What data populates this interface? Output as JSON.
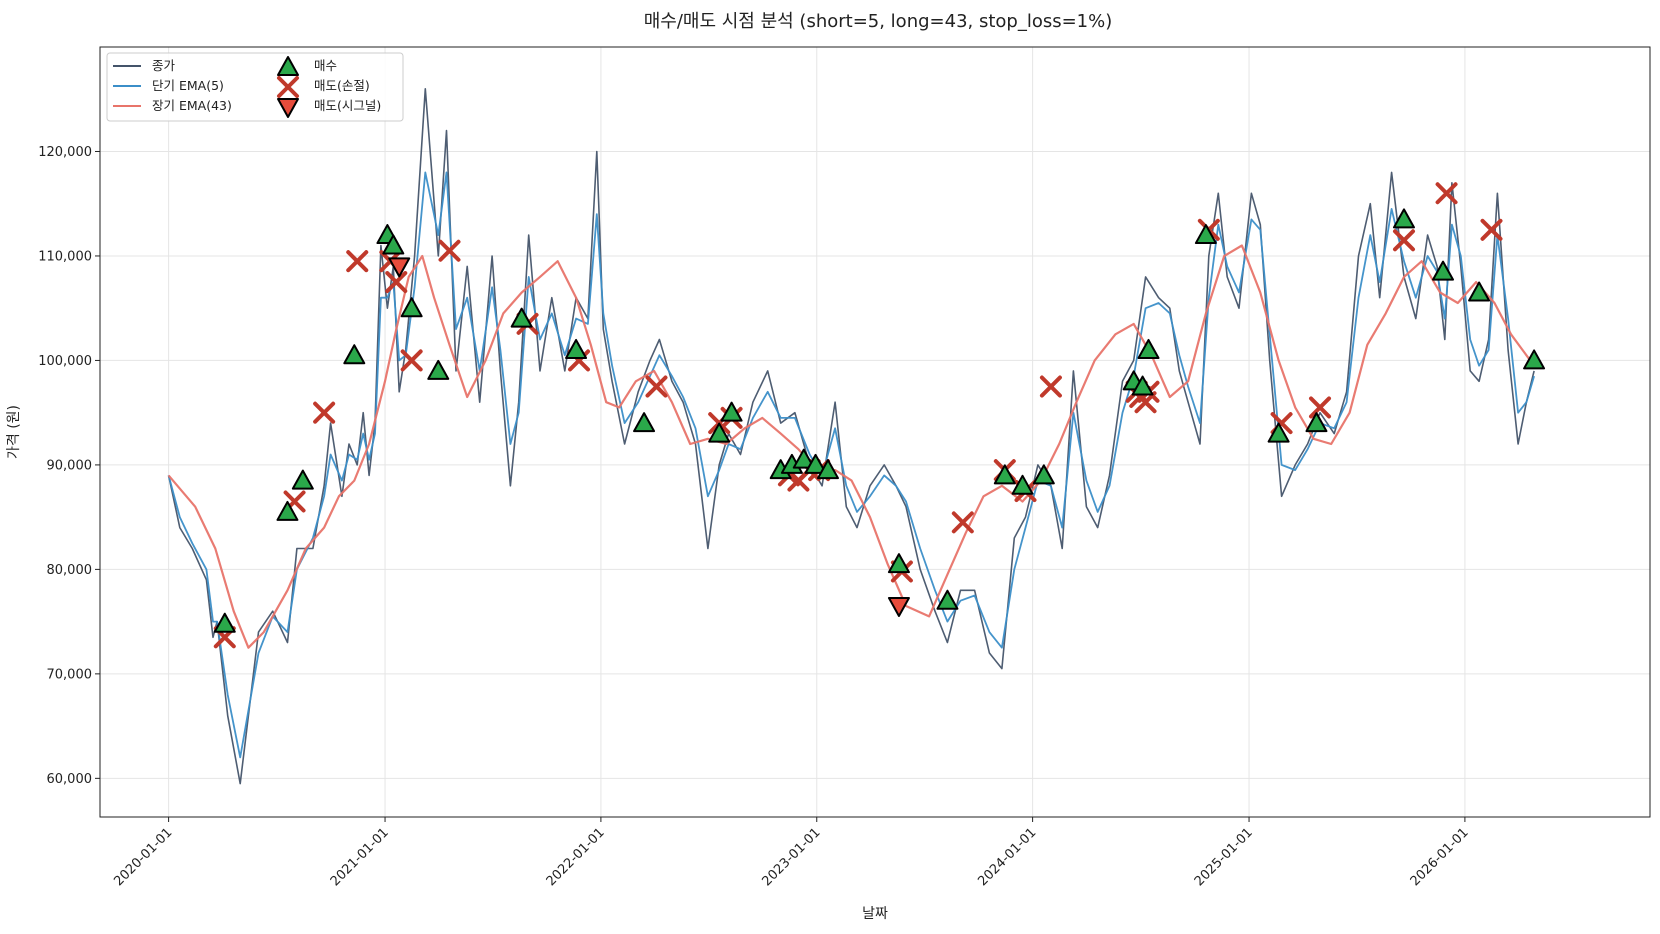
{
  "chart_data": {
    "type": "line",
    "title": "매수/매도 시점 분석 (short=5, long=43, stop_loss=1%)",
    "xlabel": "날짜",
    "ylabel": "가격 (원)",
    "x_ticks": [
      "2020-01-01",
      "2021-01-01",
      "2022-01-01",
      "2023-01-01",
      "2024-01-01",
      "2025-01-01",
      "2026-01-01"
    ],
    "y_ticks": [
      "60,000",
      "70,000",
      "80,000",
      "90,000",
      "100,000",
      "110,000",
      "120,000"
    ],
    "y_tick_values": [
      60000,
      70000,
      80000,
      90000,
      100000,
      110000,
      120000
    ],
    "ylim": [
      56300,
      130000
    ],
    "xlim": [
      "2019-09-07",
      "2026-11-10"
    ],
    "grid": true,
    "legend_position": "top-left",
    "series": [
      {
        "name": "종가",
        "color": "#44546a",
        "x": [
          "2020-01-01",
          "2020-01-20",
          "2020-02-10",
          "2020-03-05",
          "2020-03-16",
          "2020-03-23",
          "2020-04-10",
          "2020-05-01",
          "2020-06-01",
          "2020-06-25",
          "2020-07-20",
          "2020-08-05",
          "2020-09-01",
          "2020-09-20",
          "2020-10-01",
          "2020-10-20",
          "2020-11-01",
          "2020-11-15",
          "2020-11-25",
          "2020-12-05",
          "2020-12-15",
          "2020-12-25",
          "2021-01-05",
          "2021-01-15",
          "2021-01-25",
          "2021-02-05",
          "2021-02-20",
          "2021-03-10",
          "2021-04-01",
          "2021-04-15",
          "2021-05-01",
          "2021-05-20",
          "2021-06-10",
          "2021-07-01",
          "2021-07-15",
          "2021-08-01",
          "2021-08-15",
          "2021-09-01",
          "2021-09-20",
          "2021-10-10",
          "2021-11-01",
          "2021-11-20",
          "2021-12-10",
          "2021-12-25",
          "2022-01-05",
          "2022-01-20",
          "2022-02-10",
          "2022-03-05",
          "2022-03-25",
          "2022-04-10",
          "2022-05-01",
          "2022-05-20",
          "2022-06-10",
          "2022-07-01",
          "2022-07-20",
          "2022-08-05",
          "2022-08-25",
          "2022-09-15",
          "2022-10-10",
          "2022-11-01",
          "2022-11-25",
          "2022-12-20",
          "2023-01-10",
          "2023-02-01",
          "2023-02-20",
          "2023-03-10",
          "2023-04-01",
          "2023-04-25",
          "2023-05-15",
          "2023-06-01",
          "2023-06-25",
          "2023-07-20",
          "2023-08-10",
          "2023-09-01",
          "2023-09-25",
          "2023-10-20",
          "2023-11-10",
          "2023-12-01",
          "2023-12-20",
          "2024-01-10",
          "2024-02-01",
          "2024-02-20",
          "2024-03-10",
          "2024-04-01",
          "2024-04-20",
          "2024-05-10",
          "2024-06-01",
          "2024-06-20",
          "2024-07-10",
          "2024-08-01",
          "2024-08-20",
          "2024-09-05",
          "2024-09-20",
          "2024-10-10",
          "2024-10-25",
          "2024-11-10",
          "2024-11-25",
          "2024-12-15",
          "2025-01-05",
          "2025-01-20",
          "2025-02-05",
          "2025-02-25",
          "2025-03-20",
          "2025-04-10",
          "2025-05-01",
          "2025-05-25",
          "2025-06-15",
          "2025-07-05",
          "2025-07-25",
          "2025-08-10",
          "2025-08-30",
          "2025-09-20",
          "2025-10-10",
          "2025-10-30",
          "2025-11-15",
          "2025-11-28",
          "2025-12-10",
          "2025-12-25",
          "2026-01-10",
          "2026-01-25",
          "2026-02-10",
          "2026-02-25",
          "2026-03-15",
          "2026-04-01",
          "2026-04-15",
          "2026-04-28"
        ],
        "y": [
          89000,
          84000,
          82000,
          79000,
          73500,
          75000,
          66000,
          59500,
          74000,
          76000,
          73000,
          82000,
          82000,
          88000,
          94000,
          87000,
          92000,
          90000,
          95000,
          89000,
          94000,
          111000,
          105000,
          109000,
          97000,
          101000,
          110000,
          126000,
          110000,
          122000,
          99000,
          109000,
          96000,
          110000,
          99000,
          88000,
          96000,
          112000,
          99000,
          106000,
          99000,
          106000,
          104000,
          120000,
          103000,
          98000,
          92000,
          97000,
          100000,
          102000,
          98000,
          96000,
          92000,
          82000,
          90000,
          93000,
          91000,
          96000,
          99000,
          94000,
          95000,
          90000,
          88000,
          96000,
          86000,
          84000,
          88000,
          90000,
          88000,
          86000,
          80000,
          76000,
          73000,
          78000,
          78000,
          72000,
          70500,
          83000,
          85000,
          90000,
          88000,
          82000,
          99000,
          86000,
          84000,
          89000,
          98000,
          100000,
          108000,
          106000,
          105000,
          99000,
          96000,
          92000,
          110000,
          116000,
          108000,
          105000,
          116000,
          113000,
          100000,
          87000,
          90000,
          92000,
          95000,
          93000,
          97000,
          110000,
          115000,
          106000,
          118000,
          108000,
          104000,
          112000,
          109000,
          102000,
          117000,
          109000,
          99000,
          98000,
          102000,
          116000,
          101000,
          92000,
          96000,
          99000
        ]
      },
      {
        "name": "단기 EMA(5)",
        "color": "#3b8ec8",
        "x": [
          "2020-01-01",
          "2020-01-20",
          "2020-02-10",
          "2020-03-05",
          "2020-03-16",
          "2020-03-23",
          "2020-04-10",
          "2020-05-01",
          "2020-06-01",
          "2020-06-25",
          "2020-07-20",
          "2020-08-05",
          "2020-09-01",
          "2020-09-20",
          "2020-10-01",
          "2020-10-20",
          "2020-11-01",
          "2020-11-15",
          "2020-11-25",
          "2020-12-05",
          "2020-12-15",
          "2020-12-25",
          "2021-01-05",
          "2021-01-15",
          "2021-01-25",
          "2021-02-05",
          "2021-02-20",
          "2021-03-10",
          "2021-04-01",
          "2021-04-15",
          "2021-05-01",
          "2021-05-20",
          "2021-06-10",
          "2021-07-01",
          "2021-07-15",
          "2021-08-01",
          "2021-08-15",
          "2021-09-01",
          "2021-09-20",
          "2021-10-10",
          "2021-11-01",
          "2021-11-20",
          "2021-12-10",
          "2021-12-25",
          "2022-01-05",
          "2022-01-20",
          "2022-02-10",
          "2022-03-05",
          "2022-03-25",
          "2022-04-10",
          "2022-05-01",
          "2022-05-20",
          "2022-06-10",
          "2022-07-01",
          "2022-07-20",
          "2022-08-05",
          "2022-08-25",
          "2022-09-15",
          "2022-10-10",
          "2022-11-01",
          "2022-11-25",
          "2022-12-20",
          "2023-01-10",
          "2023-02-01",
          "2023-02-20",
          "2023-03-10",
          "2023-04-01",
          "2023-04-25",
          "2023-05-15",
          "2023-06-01",
          "2023-06-25",
          "2023-07-20",
          "2023-08-10",
          "2023-09-01",
          "2023-09-25",
          "2023-10-20",
          "2023-11-10",
          "2023-12-01",
          "2023-12-20",
          "2024-01-10",
          "2024-02-01",
          "2024-02-20",
          "2024-03-10",
          "2024-04-01",
          "2024-04-20",
          "2024-05-10",
          "2024-06-01",
          "2024-06-20",
          "2024-07-10",
          "2024-08-01",
          "2024-08-20",
          "2024-09-05",
          "2024-09-20",
          "2024-10-10",
          "2024-10-25",
          "2024-11-10",
          "2024-11-25",
          "2024-12-15",
          "2025-01-05",
          "2025-01-20",
          "2025-02-05",
          "2025-02-25",
          "2025-03-20",
          "2025-04-10",
          "2025-05-01",
          "2025-05-25",
          "2025-06-15",
          "2025-07-05",
          "2025-07-25",
          "2025-08-10",
          "2025-08-30",
          "2025-09-20",
          "2025-10-10",
          "2025-10-30",
          "2025-11-15",
          "2025-11-28",
          "2025-12-10",
          "2025-12-25",
          "2026-01-10",
          "2026-01-25",
          "2026-02-10",
          "2026-02-25",
          "2026-03-15",
          "2026-04-01",
          "2026-04-15",
          "2026-04-28"
        ],
        "y": [
          89000,
          85000,
          82500,
          80000,
          75000,
          75000,
          68000,
          62000,
          72000,
          75500,
          74000,
          80000,
          83000,
          87000,
          91000,
          88500,
          91000,
          90500,
          93000,
          90500,
          93000,
          106000,
          106000,
          107500,
          100000,
          100500,
          107000,
          118000,
          112000,
          118000,
          103000,
          106000,
          99000,
          107000,
          101000,
          92000,
          95000,
          108000,
          102000,
          104500,
          100500,
          104000,
          103500,
          114000,
          104500,
          99500,
          94000,
          96000,
          98500,
          100500,
          98500,
          96500,
          93500,
          87000,
          89500,
          92000,
          91500,
          94500,
          97000,
          94500,
          94500,
          91000,
          89000,
          93500,
          88000,
          85500,
          87000,
          89000,
          88000,
          86500,
          82000,
          78000,
          75000,
          77000,
          77500,
          74000,
          72500,
          80000,
          84000,
          88500,
          88000,
          84000,
          95000,
          88500,
          85500,
          88000,
          95000,
          98500,
          105000,
          105500,
          104500,
          100500,
          97500,
          94000,
          106000,
          113000,
          109000,
          106500,
          113500,
          112500,
          102500,
          90000,
          89500,
          91500,
          94000,
          93500,
          96000,
          106000,
          112000,
          107500,
          114500,
          109500,
          106000,
          110000,
          108500,
          104000,
          113000,
          110000,
          102000,
          99500,
          101000,
          112000,
          104000,
          95000,
          96000,
          98500
        ]
      },
      {
        "name": "장기 EMA(43)",
        "color": "#e8746a",
        "x": [
          "2020-01-01",
          "2020-02-15",
          "2020-03-20",
          "2020-04-20",
          "2020-05-15",
          "2020-06-10",
          "2020-07-20",
          "2020-08-20",
          "2020-09-20",
          "2020-10-15",
          "2020-11-10",
          "2020-12-05",
          "2021-01-01",
          "2021-01-20",
          "2021-02-10",
          "2021-03-05",
          "2021-03-25",
          "2021-04-20",
          "2021-05-20",
          "2021-06-20",
          "2021-07-20",
          "2021-08-20",
          "2021-09-20",
          "2021-10-20",
          "2021-11-20",
          "2021-12-15",
          "2022-01-10",
          "2022-02-01",
          "2022-03-01",
          "2022-04-01",
          "2022-05-01",
          "2022-06-01",
          "2022-07-01",
          "2022-08-01",
          "2022-09-01",
          "2022-10-01",
          "2022-11-01",
          "2022-12-01",
          "2023-01-01",
          "2023-02-01",
          "2023-03-01",
          "2023-04-01",
          "2023-05-01",
          "2023-06-01",
          "2023-07-10",
          "2023-08-10",
          "2023-09-10",
          "2023-10-10",
          "2023-11-10",
          "2023-12-15",
          "2024-01-15",
          "2024-02-15",
          "2024-03-15",
          "2024-04-15",
          "2024-05-20",
          "2024-06-20",
          "2024-07-20",
          "2024-08-20",
          "2024-09-20",
          "2024-10-20",
          "2024-11-20",
          "2024-12-20",
          "2025-01-20",
          "2025-02-20",
          "2025-03-20",
          "2025-04-20",
          "2025-05-20",
          "2025-06-20",
          "2025-07-20",
          "2025-08-20",
          "2025-09-20",
          "2025-10-20",
          "2025-11-20",
          "2025-12-20",
          "2026-01-20",
          "2026-02-20",
          "2026-03-20",
          "2026-04-28"
        ],
        "y": [
          89000,
          86000,
          82000,
          76000,
          72500,
          74000,
          78000,
          82000,
          84000,
          87000,
          88500,
          92000,
          98000,
          103000,
          108000,
          110000,
          106000,
          101500,
          96500,
          100000,
          104500,
          106500,
          108000,
          109500,
          106000,
          101500,
          96000,
          95500,
          98000,
          99000,
          96000,
          92000,
          92500,
          92000,
          93500,
          94500,
          93000,
          91500,
          89500,
          89500,
          88500,
          85000,
          80500,
          76500,
          75500,
          79500,
          83500,
          87000,
          88000,
          86500,
          88500,
          92000,
          96000,
          100000,
          102500,
          103500,
          100500,
          96500,
          98000,
          104500,
          110000,
          111000,
          106500,
          100000,
          95500,
          92500,
          92000,
          95000,
          101500,
          104500,
          108000,
          109500,
          106500,
          105500,
          107500,
          105500,
          102500,
          99500
        ]
      }
    ],
    "markers": {
      "buy": {
        "name": "매수",
        "color": "#2aa84a",
        "x": [
          "2020-04-05",
          "2020-07-20",
          "2020-08-15",
          "2020-11-10",
          "2021-01-05",
          "2021-01-15",
          "2021-02-15",
          "2021-04-01",
          "2021-08-20",
          "2021-11-20",
          "2022-03-15",
          "2022-07-20",
          "2022-08-10",
          "2022-11-01",
          "2022-11-20",
          "2022-12-10",
          "2022-12-30",
          "2023-01-20",
          "2023-05-20",
          "2023-08-10",
          "2023-11-15",
          "2023-12-15",
          "2024-01-20",
          "2024-06-20",
          "2024-07-05",
          "2024-07-15",
          "2024-10-20",
          "2025-02-20",
          "2025-04-25",
          "2025-09-20",
          "2025-11-25",
          "2026-01-25",
          "2026-04-28"
        ],
        "y": [
          74800,
          85500,
          88500,
          100500,
          112000,
          111000,
          105000,
          99000,
          104000,
          101000,
          94000,
          93000,
          95000,
          89500,
          90000,
          90500,
          90000,
          89500,
          80500,
          77000,
          89000,
          88000,
          89000,
          98000,
          97500,
          101000,
          112000,
          93000,
          94000,
          113500,
          108500,
          106500,
          100000
        ]
      },
      "sell_stop": {
        "name": "매도(손절)",
        "color": "#c0392b",
        "x": [
          "2020-04-05",
          "2020-08-01",
          "2020-09-20",
          "2020-11-15",
          "2021-01-10",
          "2021-01-20",
          "2021-02-15",
          "2021-04-20",
          "2021-08-30",
          "2021-11-25",
          "2022-04-05",
          "2022-07-20",
          "2022-08-10",
          "2022-11-15",
          "2022-12-01",
          "2022-12-20",
          "2023-01-05",
          "2023-05-25",
          "2023-09-05",
          "2023-11-15",
          "2023-12-20",
          "2024-02-01",
          "2024-06-25",
          "2024-07-01",
          "2024-07-10",
          "2024-07-15",
          "2024-10-25",
          "2025-02-25",
          "2025-05-01",
          "2025-09-20",
          "2025-12-01",
          "2026-02-15"
        ],
        "y": [
          73500,
          86500,
          95000,
          109500,
          109500,
          107500,
          100000,
          110500,
          103500,
          100000,
          97500,
          94000,
          94500,
          89000,
          88500,
          89500,
          89500,
          79800,
          84500,
          89500,
          87500,
          97500,
          97000,
          96500,
          96000,
          97000,
          112500,
          94000,
          95500,
          111500,
          116000,
          112500
        ]
      },
      "sell_signal": {
        "name": "매도(시그널)",
        "color": "#e74c3c",
        "x": [
          "2021-01-25",
          "2023-05-20"
        ],
        "y": [
          109000,
          76500
        ]
      }
    }
  }
}
